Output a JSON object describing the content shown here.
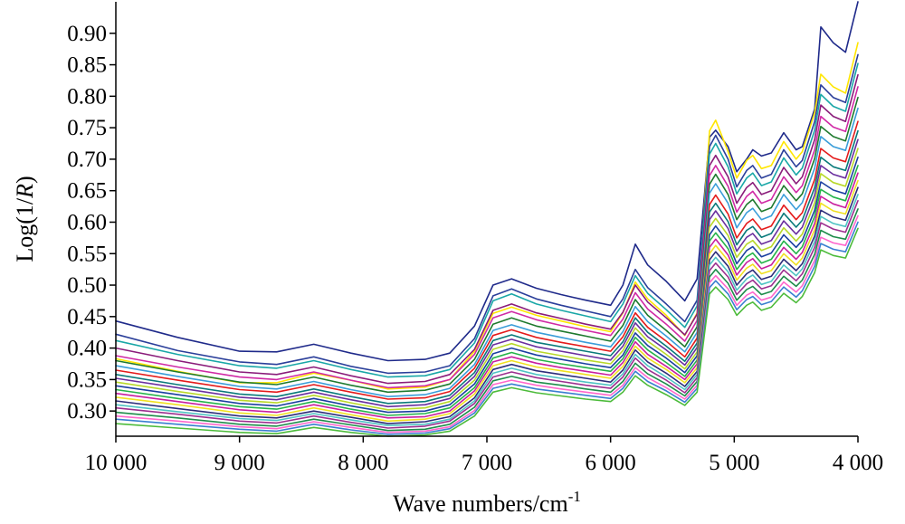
{
  "chart_data": {
    "type": "line",
    "title": "",
    "xlabel": "Wave numbers/cm",
    "xlabel_superscript": "-1",
    "ylabel_prefix": "Log(1/",
    "ylabel_italic": "R",
    "ylabel_suffix": ")",
    "x_reversed": true,
    "xlim": [
      4000,
      10000
    ],
    "ylim": [
      0.26,
      0.95
    ],
    "x_ticks": [
      10000,
      9000,
      8000,
      7000,
      6000,
      5000,
      4000
    ],
    "x_tick_labels": [
      "10 000",
      "9 000",
      "8 000",
      "7 000",
      "6 000",
      "5 000",
      "4 000"
    ],
    "y_ticks": [
      0.3,
      0.35,
      0.4,
      0.45,
      0.5,
      0.55,
      0.6,
      0.65,
      0.7,
      0.75,
      0.8,
      0.85,
      0.9
    ],
    "y_tick_labels": [
      "0.30",
      "0.35",
      "0.40",
      "0.45",
      "0.50",
      "0.55",
      "0.60",
      "0.65",
      "0.70",
      "0.75",
      "0.80",
      "0.85",
      "0.90"
    ],
    "grid": false,
    "legend": "none",
    "x": [
      10000,
      9500,
      9000,
      8700,
      8400,
      8100,
      7800,
      7500,
      7300,
      7100,
      6950,
      6800,
      6600,
      6400,
      6200,
      6000,
      5900,
      5800,
      5700,
      5550,
      5400,
      5300,
      5200,
      5150,
      5050,
      4980,
      4900,
      4850,
      4780,
      4700,
      4600,
      4500,
      4450,
      4350,
      4300,
      4200,
      4100,
      4000
    ],
    "series": [
      {
        "color": "#1f2a8a",
        "values": [
          0.443,
          0.417,
          0.395,
          0.394,
          0.406,
          0.392,
          0.38,
          0.382,
          0.392,
          0.435,
          0.5,
          0.51,
          0.495,
          0.485,
          0.476,
          0.468,
          0.5,
          0.565,
          0.532,
          0.506,
          0.475,
          0.51,
          0.735,
          0.746,
          0.72,
          0.68,
          0.7,
          0.715,
          0.705,
          0.71,
          0.742,
          0.715,
          0.72,
          0.78,
          0.91,
          0.885,
          0.87,
          0.95
        ]
      },
      {
        "color": "#ffe600",
        "values": [
          0.383,
          0.363,
          0.345,
          0.345,
          0.36,
          0.349,
          0.335,
          0.338,
          0.35,
          0.395,
          0.455,
          0.465,
          0.452,
          0.443,
          0.434,
          0.426,
          0.456,
          0.505,
          0.478,
          0.452,
          0.42,
          0.456,
          0.745,
          0.762,
          0.712,
          0.67,
          0.698,
          0.706,
          0.685,
          0.69,
          0.728,
          0.7,
          0.712,
          0.774,
          0.835,
          0.815,
          0.805,
          0.885
        ]
      },
      {
        "color": "#2b3f9a",
        "values": [
          0.422,
          0.396,
          0.378,
          0.374,
          0.386,
          0.371,
          0.36,
          0.362,
          0.372,
          0.415,
          0.483,
          0.494,
          0.478,
          0.468,
          0.459,
          0.45,
          0.478,
          0.525,
          0.496,
          0.47,
          0.442,
          0.476,
          0.72,
          0.738,
          0.7,
          0.656,
          0.682,
          0.69,
          0.67,
          0.676,
          0.715,
          0.688,
          0.698,
          0.76,
          0.818,
          0.798,
          0.79,
          0.866
        ]
      },
      {
        "color": "#1aa7a7",
        "values": [
          0.412,
          0.39,
          0.372,
          0.368,
          0.38,
          0.366,
          0.354,
          0.356,
          0.366,
          0.408,
          0.475,
          0.486,
          0.47,
          0.46,
          0.451,
          0.442,
          0.47,
          0.515,
          0.487,
          0.461,
          0.433,
          0.467,
          0.708,
          0.725,
          0.688,
          0.645,
          0.67,
          0.678,
          0.658,
          0.664,
          0.702,
          0.675,
          0.686,
          0.746,
          0.803,
          0.784,
          0.776,
          0.852
        ]
      },
      {
        "color": "#8a1c7a",
        "values": [
          0.4,
          0.38,
          0.362,
          0.358,
          0.37,
          0.356,
          0.344,
          0.347,
          0.358,
          0.398,
          0.46,
          0.47,
          0.456,
          0.447,
          0.438,
          0.43,
          0.457,
          0.5,
          0.473,
          0.448,
          0.421,
          0.454,
          0.69,
          0.706,
          0.672,
          0.63,
          0.655,
          0.663,
          0.644,
          0.65,
          0.687,
          0.661,
          0.672,
          0.731,
          0.786,
          0.768,
          0.76,
          0.834
        ]
      },
      {
        "color": "#d02aa5",
        "values": [
          0.388,
          0.37,
          0.354,
          0.35,
          0.362,
          0.349,
          0.337,
          0.34,
          0.35,
          0.39,
          0.448,
          0.458,
          0.445,
          0.436,
          0.428,
          0.42,
          0.446,
          0.488,
          0.462,
          0.438,
          0.411,
          0.444,
          0.674,
          0.69,
          0.657,
          0.616,
          0.641,
          0.649,
          0.63,
          0.636,
          0.672,
          0.647,
          0.658,
          0.715,
          0.768,
          0.751,
          0.744,
          0.815
        ]
      },
      {
        "color": "#1f7a2e",
        "values": [
          0.38,
          0.362,
          0.346,
          0.342,
          0.354,
          0.341,
          0.33,
          0.333,
          0.343,
          0.382,
          0.438,
          0.448,
          0.435,
          0.427,
          0.419,
          0.411,
          0.436,
          0.477,
          0.452,
          0.428,
          0.402,
          0.434,
          0.66,
          0.676,
          0.644,
          0.604,
          0.628,
          0.636,
          0.617,
          0.623,
          0.658,
          0.634,
          0.645,
          0.701,
          0.752,
          0.736,
          0.729,
          0.798
        ]
      },
      {
        "color": "#3a9dd9",
        "values": [
          0.372,
          0.355,
          0.339,
          0.335,
          0.347,
          0.334,
          0.323,
          0.326,
          0.336,
          0.374,
          0.428,
          0.437,
          0.425,
          0.417,
          0.409,
          0.402,
          0.426,
          0.466,
          0.442,
          0.419,
          0.394,
          0.425,
          0.646,
          0.661,
          0.63,
          0.591,
          0.615,
          0.622,
          0.604,
          0.61,
          0.644,
          0.62,
          0.631,
          0.686,
          0.736,
          0.72,
          0.714,
          0.781
        ]
      },
      {
        "color": "#e41b1b",
        "values": [
          0.365,
          0.349,
          0.334,
          0.33,
          0.342,
          0.33,
          0.319,
          0.321,
          0.331,
          0.368,
          0.42,
          0.429,
          0.417,
          0.409,
          0.402,
          0.395,
          0.418,
          0.456,
          0.433,
          0.411,
          0.386,
          0.416,
          0.628,
          0.643,
          0.613,
          0.575,
          0.598,
          0.605,
          0.588,
          0.594,
          0.627,
          0.604,
          0.615,
          0.668,
          0.717,
          0.702,
          0.696,
          0.76
        ]
      },
      {
        "color": "#0a7a7a",
        "values": [
          0.358,
          0.342,
          0.327,
          0.323,
          0.335,
          0.323,
          0.312,
          0.315,
          0.325,
          0.361,
          0.412,
          0.421,
          0.409,
          0.402,
          0.395,
          0.388,
          0.41,
          0.448,
          0.425,
          0.403,
          0.379,
          0.408,
          0.616,
          0.63,
          0.601,
          0.564,
          0.587,
          0.593,
          0.576,
          0.582,
          0.614,
          0.592,
          0.603,
          0.655,
          0.703,
          0.688,
          0.682,
          0.745
        ]
      },
      {
        "color": "#6a2f9e",
        "values": [
          0.352,
          0.337,
          0.322,
          0.318,
          0.33,
          0.318,
          0.307,
          0.31,
          0.32,
          0.355,
          0.405,
          0.414,
          0.402,
          0.395,
          0.388,
          0.381,
          0.403,
          0.44,
          0.418,
          0.397,
          0.373,
          0.401,
          0.604,
          0.618,
          0.59,
          0.554,
          0.576,
          0.582,
          0.565,
          0.571,
          0.602,
          0.581,
          0.592,
          0.643,
          0.69,
          0.676,
          0.67,
          0.731
        ]
      },
      {
        "color": "#b8d82a",
        "values": [
          0.346,
          0.331,
          0.317,
          0.313,
          0.325,
          0.313,
          0.302,
          0.305,
          0.315,
          0.349,
          0.398,
          0.407,
          0.395,
          0.388,
          0.381,
          0.375,
          0.396,
          0.432,
          0.411,
          0.39,
          0.367,
          0.394,
          0.592,
          0.606,
          0.579,
          0.544,
          0.565,
          0.571,
          0.555,
          0.561,
          0.591,
          0.57,
          0.581,
          0.631,
          0.677,
          0.663,
          0.657,
          0.717
        ]
      },
      {
        "color": "#1b3fa0",
        "values": [
          0.34,
          0.326,
          0.312,
          0.308,
          0.32,
          0.308,
          0.298,
          0.3,
          0.31,
          0.343,
          0.391,
          0.4,
          0.389,
          0.382,
          0.375,
          0.369,
          0.389,
          0.424,
          0.404,
          0.384,
          0.361,
          0.388,
          0.58,
          0.594,
          0.568,
          0.534,
          0.555,
          0.561,
          0.545,
          0.551,
          0.58,
          0.56,
          0.571,
          0.619,
          0.664,
          0.651,
          0.645,
          0.703
        ]
      },
      {
        "color": "#25b34a",
        "values": [
          0.334,
          0.32,
          0.307,
          0.303,
          0.315,
          0.303,
          0.293,
          0.296,
          0.305,
          0.337,
          0.384,
          0.393,
          0.382,
          0.375,
          0.369,
          0.363,
          0.383,
          0.417,
          0.397,
          0.377,
          0.355,
          0.381,
          0.57,
          0.583,
          0.558,
          0.525,
          0.545,
          0.551,
          0.535,
          0.541,
          0.57,
          0.55,
          0.561,
          0.609,
          0.652,
          0.64,
          0.634,
          0.69
        ]
      },
      {
        "color": "#c81f9f",
        "values": [
          0.328,
          0.315,
          0.302,
          0.298,
          0.31,
          0.299,
          0.289,
          0.291,
          0.3,
          0.332,
          0.378,
          0.386,
          0.376,
          0.369,
          0.363,
          0.357,
          0.377,
          0.41,
          0.39,
          0.371,
          0.35,
          0.375,
          0.56,
          0.573,
          0.548,
          0.516,
          0.536,
          0.542,
          0.526,
          0.532,
          0.56,
          0.541,
          0.552,
          0.598,
          0.641,
          0.629,
          0.623,
          0.678
        ]
      },
      {
        "color": "#f0e020",
        "values": [
          0.322,
          0.31,
          0.297,
          0.293,
          0.305,
          0.294,
          0.284,
          0.287,
          0.296,
          0.327,
          0.372,
          0.38,
          0.37,
          0.364,
          0.358,
          0.352,
          0.371,
          0.403,
          0.384,
          0.366,
          0.345,
          0.369,
          0.55,
          0.563,
          0.539,
          0.508,
          0.527,
          0.533,
          0.518,
          0.523,
          0.55,
          0.532,
          0.543,
          0.588,
          0.63,
          0.618,
          0.613,
          0.666
        ]
      },
      {
        "color": "#2d2d7a",
        "values": [
          0.316,
          0.304,
          0.292,
          0.289,
          0.3,
          0.29,
          0.28,
          0.283,
          0.291,
          0.321,
          0.366,
          0.374,
          0.364,
          0.358,
          0.352,
          0.346,
          0.365,
          0.397,
          0.378,
          0.36,
          0.339,
          0.363,
          0.54,
          0.553,
          0.53,
          0.5,
          0.518,
          0.524,
          0.509,
          0.514,
          0.541,
          0.523,
          0.534,
          0.578,
          0.619,
          0.608,
          0.603,
          0.655
        ]
      },
      {
        "color": "#4fc3c3",
        "values": [
          0.31,
          0.299,
          0.288,
          0.285,
          0.296,
          0.286,
          0.277,
          0.279,
          0.287,
          0.316,
          0.36,
          0.368,
          0.358,
          0.352,
          0.346,
          0.341,
          0.359,
          0.39,
          0.372,
          0.354,
          0.334,
          0.358,
          0.532,
          0.544,
          0.521,
          0.492,
          0.51,
          0.516,
          0.501,
          0.506,
          0.532,
          0.515,
          0.526,
          0.569,
          0.609,
          0.598,
          0.593,
          0.644
        ]
      },
      {
        "color": "#9c2f8f",
        "values": [
          0.305,
          0.295,
          0.284,
          0.281,
          0.292,
          0.282,
          0.273,
          0.276,
          0.284,
          0.312,
          0.354,
          0.362,
          0.353,
          0.347,
          0.341,
          0.336,
          0.354,
          0.384,
          0.366,
          0.349,
          0.329,
          0.353,
          0.523,
          0.535,
          0.513,
          0.485,
          0.502,
          0.508,
          0.494,
          0.499,
          0.524,
          0.507,
          0.518,
          0.56,
          0.599,
          0.589,
          0.584,
          0.634
        ]
      },
      {
        "color": "#1e8c4a",
        "values": [
          0.298,
          0.289,
          0.279,
          0.276,
          0.287,
          0.278,
          0.269,
          0.271,
          0.279,
          0.306,
          0.348,
          0.355,
          0.346,
          0.341,
          0.335,
          0.33,
          0.347,
          0.376,
          0.359,
          0.343,
          0.324,
          0.347,
          0.513,
          0.525,
          0.503,
          0.476,
          0.493,
          0.498,
          0.485,
          0.49,
          0.514,
          0.498,
          0.508,
          0.549,
          0.587,
          0.577,
          0.573,
          0.621
        ]
      },
      {
        "color": "#ff66cc",
        "values": [
          0.292,
          0.284,
          0.275,
          0.272,
          0.283,
          0.274,
          0.266,
          0.268,
          0.275,
          0.301,
          0.342,
          0.349,
          0.341,
          0.335,
          0.33,
          0.325,
          0.341,
          0.369,
          0.353,
          0.337,
          0.319,
          0.341,
          0.504,
          0.515,
          0.494,
          0.468,
          0.484,
          0.489,
          0.476,
          0.481,
          0.505,
          0.489,
          0.499,
          0.539,
          0.576,
          0.567,
          0.563,
          0.61
        ]
      },
      {
        "color": "#3a7fd0",
        "values": [
          0.287,
          0.279,
          0.271,
          0.268,
          0.279,
          0.27,
          0.263,
          0.265,
          0.272,
          0.297,
          0.336,
          0.343,
          0.335,
          0.33,
          0.325,
          0.32,
          0.336,
          0.363,
          0.347,
          0.332,
          0.314,
          0.336,
          0.496,
          0.507,
          0.486,
          0.461,
          0.477,
          0.482,
          0.469,
          0.474,
          0.497,
          0.481,
          0.491,
          0.53,
          0.566,
          0.557,
          0.553,
          0.6
        ]
      },
      {
        "color": "#4cbb3a",
        "values": [
          0.28,
          0.273,
          0.266,
          0.264,
          0.274,
          0.266,
          0.26,
          0.262,
          0.268,
          0.292,
          0.33,
          0.337,
          0.329,
          0.324,
          0.319,
          0.315,
          0.33,
          0.356,
          0.341,
          0.326,
          0.309,
          0.33,
          0.486,
          0.497,
          0.477,
          0.452,
          0.468,
          0.473,
          0.46,
          0.465,
          0.487,
          0.472,
          0.482,
          0.52,
          0.556,
          0.547,
          0.543,
          0.59
        ]
      }
    ]
  }
}
